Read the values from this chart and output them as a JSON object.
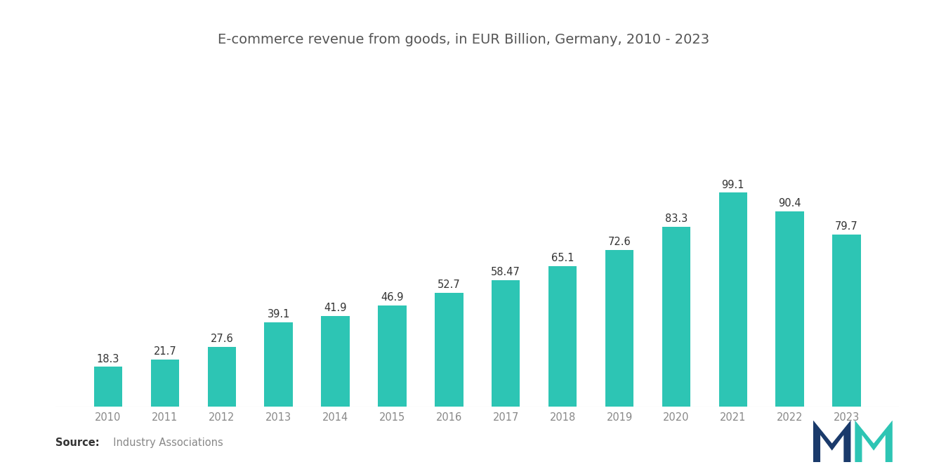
{
  "title": "E-commerce revenue from goods, in EUR Billion, Germany, 2010 - 2023",
  "years": [
    2010,
    2011,
    2012,
    2013,
    2014,
    2015,
    2016,
    2017,
    2018,
    2019,
    2020,
    2021,
    2022,
    2023
  ],
  "values": [
    18.3,
    21.7,
    27.6,
    39.1,
    41.9,
    46.9,
    52.7,
    58.47,
    65.1,
    72.6,
    83.3,
    99.1,
    90.4,
    79.7
  ],
  "bar_color": "#2DC5B4",
  "background_color": "#ffffff",
  "title_color": "#555555",
  "label_color": "#333333",
  "tick_color": "#888888",
  "source_bold": "Source:",
  "source_text": "  Industry Associations",
  "title_fontsize": 14,
  "label_fontsize": 10.5,
  "tick_fontsize": 10.5,
  "source_fontsize": 10.5,
  "ylim": [
    0,
    130
  ],
  "bar_width": 0.5,
  "logo_teal": "#2DC5B4",
  "logo_navy": "#1a3a6b"
}
